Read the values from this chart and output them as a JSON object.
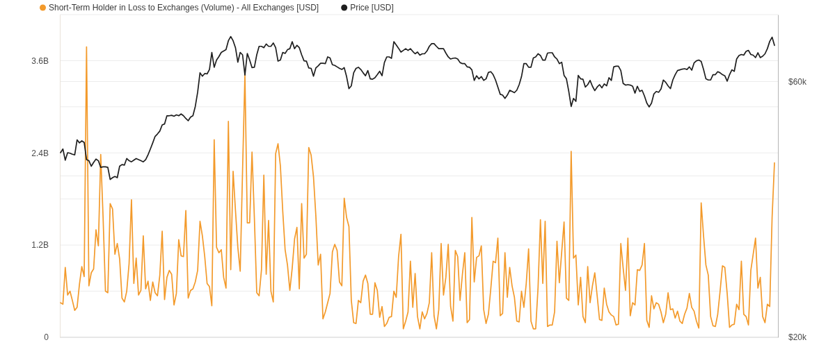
{
  "chart_data": {
    "type": "line",
    "categories": [
      null,
      null,
      null,
      null,
      null,
      null,
      null,
      null,
      null,
      null,
      null,
      null,
      null,
      null,
      null,
      null,
      null,
      null,
      null,
      null,
      null,
      null,
      null,
      null,
      null,
      null,
      null,
      null,
      null,
      null,
      null,
      null,
      null,
      null,
      null,
      null,
      null,
      null,
      null,
      null,
      null,
      null,
      null,
      null,
      null,
      null,
      null,
      null,
      null,
      null,
      null,
      null,
      null,
      null,
      null,
      null,
      null,
      null,
      null,
      null,
      null,
      null,
      null,
      null,
      null,
      null,
      null,
      null,
      null,
      null,
      null,
      null,
      null,
      null,
      null,
      null,
      null,
      null,
      null,
      null,
      null,
      null,
      null,
      null,
      null,
      null,
      null,
      null,
      null,
      null,
      null,
      null,
      null,
      null,
      null,
      null,
      null,
      null,
      null,
      null,
      null,
      null,
      null,
      null,
      null,
      null,
      null,
      null,
      null,
      null,
      null,
      null,
      null,
      null,
      null,
      null,
      null,
      null,
      null,
      null,
      null,
      null,
      null,
      null,
      null,
      null,
      null,
      null,
      null,
      null,
      null,
      null,
      null,
      null,
      null,
      null,
      null,
      null,
      null,
      null,
      null,
      null,
      null,
      null,
      null,
      null,
      null,
      null,
      null,
      null,
      null,
      null,
      null,
      null,
      null,
      null,
      null,
      null,
      null,
      null,
      null,
      null,
      null,
      null,
      null,
      null,
      null,
      null,
      null,
      null,
      null,
      null,
      null,
      null,
      null,
      null,
      null,
      null,
      null,
      null,
      null,
      null,
      null,
      null,
      null,
      null,
      null,
      null,
      null,
      null,
      null,
      null,
      null,
      null,
      null,
      null,
      null,
      null,
      null,
      null,
      null,
      null,
      null,
      null,
      null,
      null,
      null,
      null,
      null,
      null,
      null,
      null,
      null,
      null,
      null,
      null,
      null,
      null,
      null,
      null,
      null,
      null,
      null,
      null,
      null,
      null,
      null,
      null,
      null,
      null,
      null,
      null,
      null,
      null,
      null,
      null,
      null,
      null,
      null,
      null,
      null,
      null,
      null,
      null,
      null,
      null,
      null,
      null,
      null,
      null,
      null,
      null,
      null,
      null,
      null,
      null,
      null,
      null,
      null,
      null,
      null,
      null,
      null,
      null,
      null,
      null,
      null,
      null,
      null,
      null,
      null,
      null,
      null,
      null,
      null,
      null,
      null,
      null,
      null,
      null,
      null,
      null,
      null,
      null,
      null,
      null,
      null,
      null,
      null,
      null,
      null,
      null,
      null,
      null,
      null,
      null,
      null,
      null,
      null,
      null,
      null,
      null,
      null
    ],
    "series": [
      {
        "name": "Short-Term Holder in Loss to Exchanges (Volume) - All Exchanges [USD]",
        "color": "#f39a2b",
        "values": [
          450000000,
          430000000,
          910000000,
          550000000,
          600000000,
          480000000,
          350000000,
          390000000,
          690000000,
          920000000,
          790000000,
          3780000000,
          670000000,
          840000000,
          890000000,
          1400000000,
          1190000000,
          2380000000,
          1560000000,
          600000000,
          580000000,
          1740000000,
          1670000000,
          1080000000,
          1220000000,
          1020000000,
          510000000,
          460000000,
          600000000,
          960000000,
          1790000000,
          700000000,
          1030000000,
          550000000,
          610000000,
          1320000000,
          630000000,
          730000000,
          480000000,
          720000000,
          580000000,
          540000000,
          810000000,
          1380000000,
          490000000,
          780000000,
          870000000,
          820000000,
          420000000,
          570000000,
          1270000000,
          1060000000,
          1050000000,
          1650000000,
          510000000,
          610000000,
          630000000,
          720000000,
          870000000,
          1510000000,
          1320000000,
          1050000000,
          700000000,
          660000000,
          410000000,
          2570000000,
          1170000000,
          1100000000,
          1140000000,
          780000000,
          640000000,
          2810000000,
          880000000,
          2160000000,
          1650000000,
          1170000000,
          860000000,
          2170000000,
          3420000000,
          1490000000,
          1490000000,
          2410000000,
          1550000000,
          580000000,
          540000000,
          880000000,
          2110000000,
          820000000,
          1520000000,
          600000000,
          460000000,
          2390000000,
          2520000000,
          2230000000,
          1640000000,
          1140000000,
          940000000,
          610000000,
          900000000,
          1280000000,
          1430000000,
          630000000,
          1740000000,
          1030000000,
          1080000000,
          2470000000,
          2370000000,
          2090000000,
          1580000000,
          940000000,
          1080000000,
          240000000,
          330000000,
          450000000,
          570000000,
          1110000000,
          1210000000,
          1130000000,
          720000000,
          670000000,
          1810000000,
          1560000000,
          1440000000,
          480000000,
          190000000,
          180000000,
          480000000,
          450000000,
          730000000,
          810000000,
          700000000,
          300000000,
          300000000,
          710000000,
          610000000,
          260000000,
          400000000,
          140000000,
          180000000,
          260000000,
          270000000,
          600000000,
          520000000,
          1050000000,
          1340000000,
          110000000,
          210000000,
          330000000,
          990000000,
          390000000,
          830000000,
          270000000,
          110000000,
          330000000,
          240000000,
          310000000,
          450000000,
          1100000000,
          280000000,
          110000000,
          360000000,
          1220000000,
          550000000,
          780000000,
          1210000000,
          400000000,
          210000000,
          1130000000,
          1050000000,
          480000000,
          820000000,
          1100000000,
          190000000,
          230000000,
          1560000000,
          720000000,
          1040000000,
          1060000000,
          1190000000,
          360000000,
          180000000,
          300000000,
          630000000,
          990000000,
          970000000,
          1290000000,
          280000000,
          310000000,
          1100000000,
          520000000,
          910000000,
          670000000,
          520000000,
          210000000,
          200000000,
          600000000,
          390000000,
          700000000,
          1150000000,
          210000000,
          110000000,
          110000000,
          650000000,
          1530000000,
          700000000,
          1510000000,
          140000000,
          160000000,
          160000000,
          330000000,
          1250000000,
          710000000,
          1110000000,
          1500000000,
          510000000,
          480000000,
          2420000000,
          1030000000,
          1070000000,
          420000000,
          780000000,
          270000000,
          190000000,
          920000000,
          450000000,
          670000000,
          840000000,
          540000000,
          230000000,
          220000000,
          640000000,
          430000000,
          330000000,
          290000000,
          270000000,
          160000000,
          170000000,
          1220000000,
          900000000,
          610000000,
          1290000000,
          280000000,
          450000000,
          420000000,
          880000000,
          870000000,
          940000000,
          1220000000,
          220000000,
          130000000,
          540000000,
          370000000,
          450000000,
          430000000,
          330000000,
          190000000,
          300000000,
          580000000,
          360000000,
          370000000,
          250000000,
          340000000,
          210000000,
          180000000,
          300000000,
          380000000,
          570000000,
          390000000,
          340000000,
          210000000,
          120000000,
          1750000000,
          1320000000,
          940000000,
          810000000,
          270000000,
          150000000,
          140000000,
          300000000,
          600000000,
          930000000,
          910000000,
          570000000,
          130000000,
          160000000,
          170000000,
          430000000,
          360000000,
          990000000,
          300000000,
          270000000,
          160000000,
          870000000,
          1080000000,
          1290000000,
          640000000,
          780000000,
          270000000,
          190000000,
          430000000,
          400000000,
          1560000000,
          2270000000
        ]
      },
      {
        "name": "Price [USD]",
        "color": "#1e1e1e",
        "axis": "y2",
        "values": [
          44200,
          44900,
          42800,
          44200,
          44100,
          43900,
          43800,
          46700,
          46100,
          46500,
          46200,
          42900,
          42700,
          41700,
          42400,
          43000,
          42700,
          41500,
          41600,
          41600,
          41500,
          39400,
          39700,
          39900,
          39700,
          41700,
          42000,
          41900,
          43100,
          42700,
          42500,
          42800,
          43100,
          42900,
          42700,
          42500,
          42900,
          43800,
          44900,
          46100,
          47400,
          47900,
          48500,
          49800,
          50000,
          51800,
          51800,
          51900,
          51700,
          52000,
          51800,
          52200,
          51800,
          51200,
          50700,
          51500,
          51800,
          53900,
          57300,
          62300,
          61400,
          62100,
          62000,
          63200,
          68000,
          63800,
          65800,
          66800,
          68000,
          68400,
          68800,
          71500,
          72800,
          71500,
          69400,
          65200,
          68000,
          67300,
          61700,
          67700,
          65800,
          63700,
          63800,
          67300,
          69800,
          69800,
          69400,
          70500,
          69800,
          69800,
          70800,
          69400,
          65500,
          65800,
          68000,
          67700,
          68800,
          69100,
          71200,
          69100,
          70100,
          69400,
          67300,
          65600,
          65500,
          63600,
          63500,
          61400,
          63600,
          64200,
          64900,
          64900,
          64800,
          66700,
          66400,
          64500,
          64300,
          63900,
          63500,
          63200,
          63700,
          61300,
          58200,
          58900,
          62300,
          63500,
          63800,
          63200,
          62300,
          61500,
          62900,
          60700,
          60600,
          61000,
          61800,
          62700,
          61500,
          65100,
          66700,
          66700,
          66300,
          71200,
          70200,
          69200,
          68100,
          68600,
          69100,
          68600,
          69100,
          68300,
          67600,
          68100,
          67200,
          67600,
          67600,
          68400,
          69800,
          70600,
          70600,
          69800,
          69100,
          69100,
          69100,
          67800,
          66700,
          66100,
          66300,
          66400,
          66100,
          65100,
          64800,
          64800,
          63900,
          63800,
          63100,
          60300,
          61500,
          60700,
          61300,
          60300,
          60700,
          62400,
          62600,
          61800,
          60400,
          58600,
          56800,
          56600,
          55800,
          56600,
          57800,
          57500,
          57200,
          57800,
          59200,
          61300,
          64800,
          64800,
          63800,
          63800,
          66400,
          66700,
          67600,
          67100,
          65800,
          65800,
          67800,
          67900,
          67900,
          66700,
          66100,
          64800,
          65200,
          61600,
          60700,
          57500,
          53900,
          55800,
          55100,
          61600,
          60700,
          60600,
          58600,
          59200,
          60300,
          58800,
          57700,
          58600,
          59200,
          58400,
          59400,
          58900,
          61000,
          60300,
          63900,
          64100,
          64100,
          62900,
          59500,
          59100,
          59200,
          59100,
          58800,
          57100,
          58800,
          57500,
          57800,
          56400,
          54700,
          53800,
          54700,
          56900,
          57500,
          57300,
          58100,
          60400,
          59800,
          58900,
          58200,
          60400,
          61800,
          62900,
          63100,
          63300,
          63400,
          63200,
          63900,
          63000,
          65000,
          65600,
          65800,
          65400,
          63200,
          60700,
          60400,
          60400,
          61800,
          61800,
          62600,
          62300,
          61800,
          61500,
          60100,
          61800,
          63100,
          62700,
          66100,
          67100,
          67400,
          67200,
          68300,
          68600,
          67400,
          67200,
          66500,
          67900,
          66500,
          66900,
          67600,
          69100,
          71300,
          72600,
          70100
        ]
      }
    ],
    "ylim": [
      0,
      4200000000
    ],
    "yticks": [
      0,
      {
        "value": 600000000,
        "label": null
      },
      {
        "value": 1200000000,
        "label": "1.2B"
      },
      {
        "value": 1800000000,
        "label": null
      },
      {
        "value": 2400000000,
        "label": "2.4B"
      },
      {
        "value": 3000000000,
        "label": null
      },
      {
        "value": 3600000000,
        "label": "3.6B"
      },
      {
        "value": 4200000000,
        "label": null
      }
    ],
    "y2lim": [
      20000,
      80000
    ],
    "y2ticks": [
      {
        "value": 20000,
        "label": "$20k"
      },
      {
        "value": 40000,
        "label": null
      },
      {
        "value": 60000,
        "label": "$60k"
      }
    ],
    "log": "y2",
    "grid": "y",
    "legend": "top left",
    "tick_labels": "y"
  }
}
